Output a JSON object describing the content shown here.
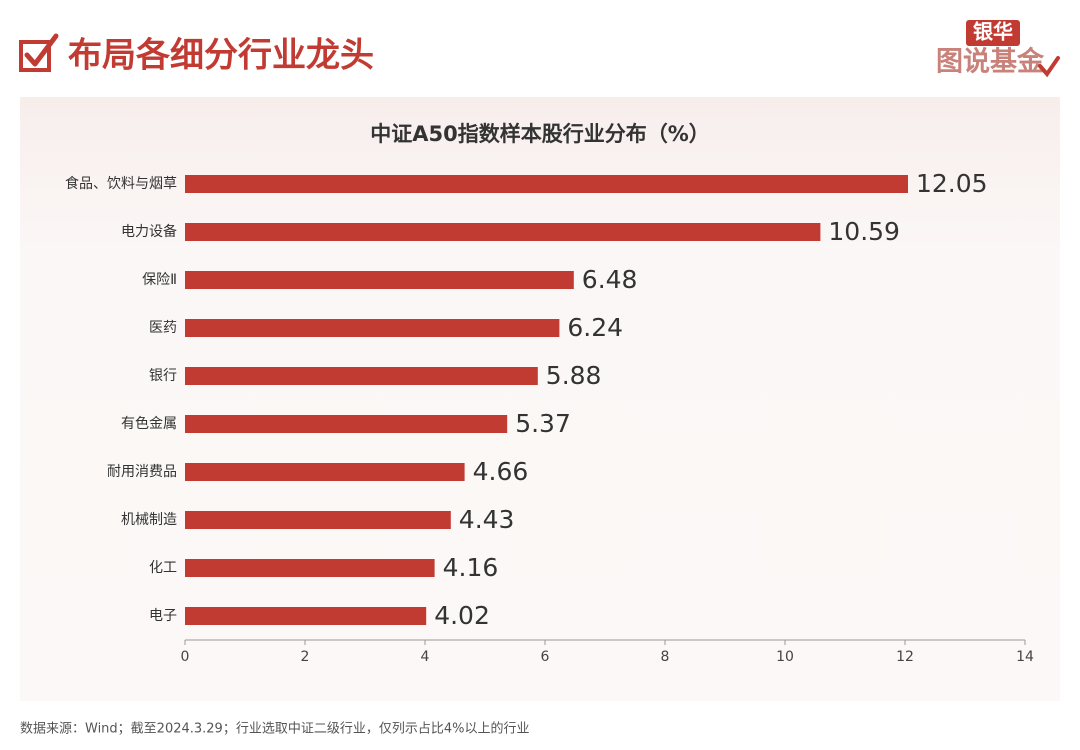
{
  "header": {
    "title": "布局各细分行业龙头",
    "logo": [
      "银华",
      "图说基金"
    ]
  },
  "chart_data": {
    "type": "bar",
    "orientation": "horizontal",
    "title": "中证A50指数样本股行业分布（%）",
    "categories": [
      "食品、饮料与烟草",
      "电力设备",
      "保险Ⅱ",
      "医药",
      "银行",
      "有色金属",
      "耐用消费品",
      "机械制造",
      "化工",
      "电子"
    ],
    "values": [
      12.05,
      10.59,
      6.48,
      6.24,
      5.88,
      5.37,
      4.66,
      4.43,
      4.16,
      4.02
    ],
    "color": "#c23b33",
    "xlim": [
      0,
      14
    ],
    "xticks": [
      0,
      2,
      4,
      6,
      8,
      10,
      12,
      14
    ],
    "grid": false
  },
  "footer": {
    "source": "数据来源：Wind；截至2024.3.29；行业选取中证二级行业，仅列示占比4%以上的行业"
  }
}
